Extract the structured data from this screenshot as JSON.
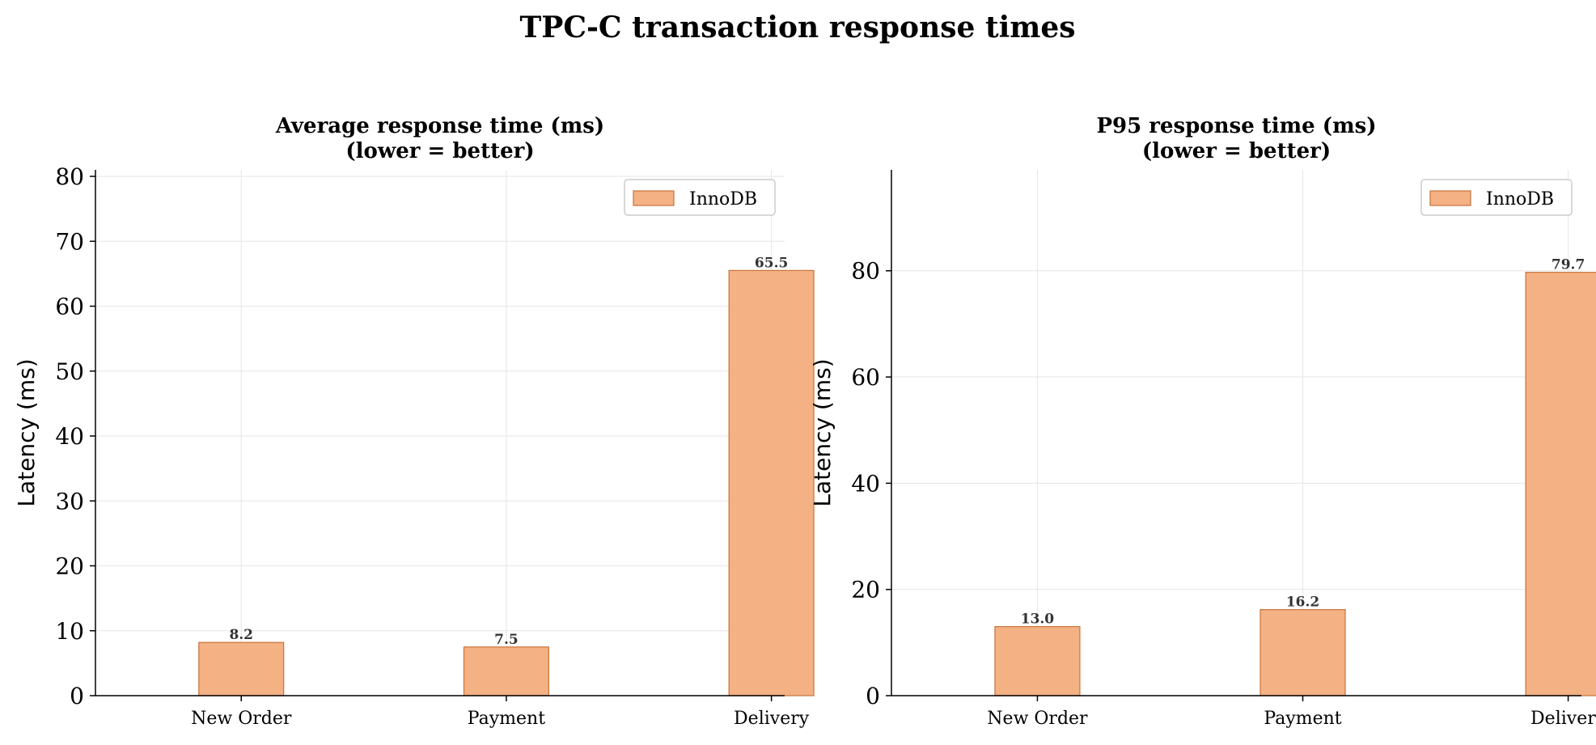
{
  "title": "TPC-C transaction response times",
  "colors": {
    "bar_fill": "#f3b184",
    "bar_edge": "#c8733a",
    "grid": "#e6e6e6",
    "axis": "#000000"
  },
  "chart_data": [
    {
      "type": "bar",
      "title_lines": [
        "Average response time (ms)",
        "(lower = better)"
      ],
      "ylabel": "Latency (ms)",
      "xlabel": "",
      "categories": [
        "New Order",
        "Payment",
        "Delivery"
      ],
      "series": [
        {
          "name": "InnoDB",
          "values": [
            8.2,
            7.5,
            65.5
          ]
        }
      ],
      "value_labels": [
        "8.2",
        "7.5",
        "65.5"
      ],
      "yticks": [
        0,
        10,
        20,
        30,
        40,
        50,
        60,
        70,
        80
      ],
      "ylim": [
        0,
        81
      ],
      "grid": true,
      "legend": "top-right"
    },
    {
      "type": "bar",
      "title_lines": [
        "P95 response time (ms)",
        "(lower = better)"
      ],
      "ylabel": "Latency (ms)",
      "xlabel": "",
      "categories": [
        "New Order",
        "Payment",
        "Delivery"
      ],
      "series": [
        {
          "name": "InnoDB",
          "values": [
            13.0,
            16.2,
            79.7
          ]
        }
      ],
      "value_labels": [
        "13.0",
        "16.2",
        "79.7"
      ],
      "yticks": [
        0,
        20,
        40,
        60,
        80
      ],
      "ylim": [
        0,
        99
      ],
      "grid": true,
      "legend": "top-right"
    }
  ]
}
